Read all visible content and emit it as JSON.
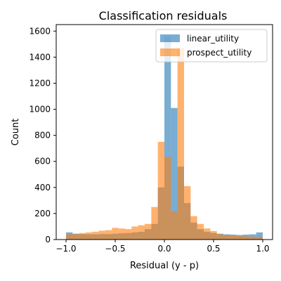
{
  "chart_data": {
    "type": "bar",
    "title": "Classification residuals",
    "xlabel": "Residual (y - p)",
    "ylabel": "Count",
    "xlim": [
      -1.1,
      1.1
    ],
    "ylim": [
      0,
      1650
    ],
    "xticks": [
      -1.0,
      -0.5,
      0.0,
      0.5,
      1.0
    ],
    "xtick_labels": [
      "−1.0",
      "−0.5",
      "0.0",
      "0.5",
      "1.0"
    ],
    "yticks": [
      0,
      200,
      400,
      600,
      800,
      1000,
      1200,
      1400,
      1600
    ],
    "ytick_labels": [
      "0",
      "200",
      "400",
      "600",
      "800",
      "1000",
      "1200",
      "1400",
      "1600"
    ],
    "grid": false,
    "legend_position": "top-right",
    "bin_edges": [
      -1.0,
      -0.9333,
      -0.8667,
      -0.8,
      -0.7333,
      -0.6667,
      -0.6,
      -0.5333,
      -0.4667,
      -0.4,
      -0.3333,
      -0.2667,
      -0.2,
      -0.1333,
      -0.0667,
      0.0,
      0.0667,
      0.1333,
      0.2,
      0.2667,
      0.3333,
      0.4,
      0.4667,
      0.5333,
      0.6,
      0.6667,
      0.7333,
      0.8,
      0.8667,
      0.9333,
      1.0
    ],
    "series": [
      {
        "name": "linear_utility",
        "color": "#1f77b4",
        "opacity": 0.6,
        "values": [
          55,
          45,
          42,
          40,
          40,
          42,
          42,
          45,
          48,
          50,
          55,
          60,
          80,
          120,
          400,
          1560,
          1010,
          560,
          280,
          130,
          80,
          60,
          50,
          45,
          40,
          38,
          35,
          38,
          40,
          55
        ]
      },
      {
        "name": "prospect_utility",
        "color": "#ff7f0e",
        "opacity": 0.6,
        "values": [
          40,
          42,
          50,
          55,
          60,
          68,
          72,
          90,
          85,
          80,
          100,
          110,
          120,
          250,
          750,
          635,
          215,
          1470,
          410,
          180,
          120,
          85,
          65,
          40,
          35,
          30,
          28,
          25,
          22,
          20
        ]
      }
    ]
  }
}
